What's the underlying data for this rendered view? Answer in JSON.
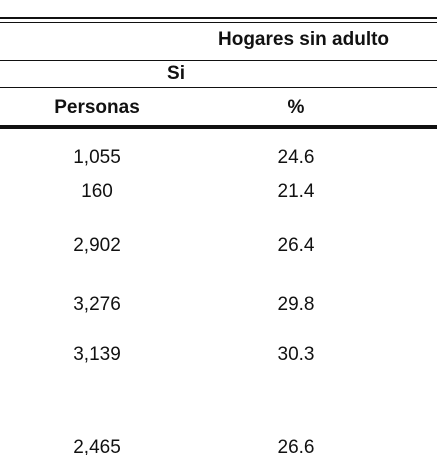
{
  "table": {
    "group_header": "Hogares sin adulto",
    "subheader": "Si",
    "columns": [
      "Personas",
      "%"
    ],
    "rows": [
      [
        "1,055",
        "24.6"
      ],
      [
        "160",
        "21.4"
      ],
      [
        "2,902",
        "26.4"
      ],
      [
        "3,276",
        "29.8"
      ],
      [
        "3,139",
        "30.3"
      ],
      [
        "2,465",
        "26.6"
      ]
    ]
  }
}
